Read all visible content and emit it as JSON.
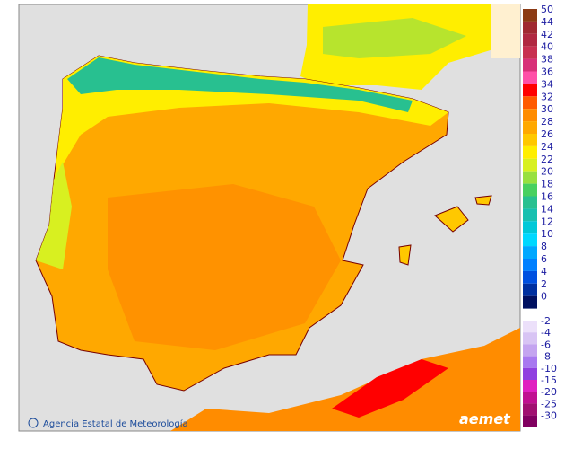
{
  "legend": {
    "items": [
      {
        "value": 50,
        "color": "#8b3a14"
      },
      {
        "value": 44,
        "color": "#a02830"
      },
      {
        "value": 42,
        "color": "#b02840"
      },
      {
        "value": 40,
        "color": "#c83050"
      },
      {
        "value": 38,
        "color": "#d83078"
      },
      {
        "value": 36,
        "color": "#ff50a8"
      },
      {
        "value": 34,
        "color": "#ff0000"
      },
      {
        "value": 32,
        "color": "#ff5a00"
      },
      {
        "value": 30,
        "color": "#ff8c00"
      },
      {
        "value": 28,
        "color": "#ffa800"
      },
      {
        "value": 26,
        "color": "#ffc800"
      },
      {
        "value": 24,
        "color": "#ffee00"
      },
      {
        "value": 22,
        "color": "#d8f020"
      },
      {
        "value": 20,
        "color": "#98e040"
      },
      {
        "value": 18,
        "color": "#48d060"
      },
      {
        "value": 16,
        "color": "#28c090"
      },
      {
        "value": 14,
        "color": "#18c0b0"
      },
      {
        "value": 12,
        "color": "#00c8d8"
      },
      {
        "value": 10,
        "color": "#00d8ff"
      },
      {
        "value": 8,
        "color": "#00a8ff"
      },
      {
        "value": 6,
        "color": "#0080ff"
      },
      {
        "value": 4,
        "color": "#0050e0"
      },
      {
        "value": 2,
        "color": "#0030a0"
      },
      {
        "value": 0,
        "color": "#001060"
      }
    ],
    "negative_items": [
      {
        "value": -2,
        "color": "#ece0fa"
      },
      {
        "value": -4,
        "color": "#d8c4f4"
      },
      {
        "value": -6,
        "color": "#c4a4f0"
      },
      {
        "value": -8,
        "color": "#a878f0"
      },
      {
        "value": -10,
        "color": "#9040e0"
      },
      {
        "value": -15,
        "color": "#e020c0"
      },
      {
        "value": -20,
        "color": "#c01090"
      },
      {
        "value": -25,
        "color": "#a01070"
      },
      {
        "value": -30,
        "color": "#800060"
      }
    ]
  },
  "footer": {
    "agency": "Agencia Estatal de Meteorología",
    "logo": "aemet"
  }
}
